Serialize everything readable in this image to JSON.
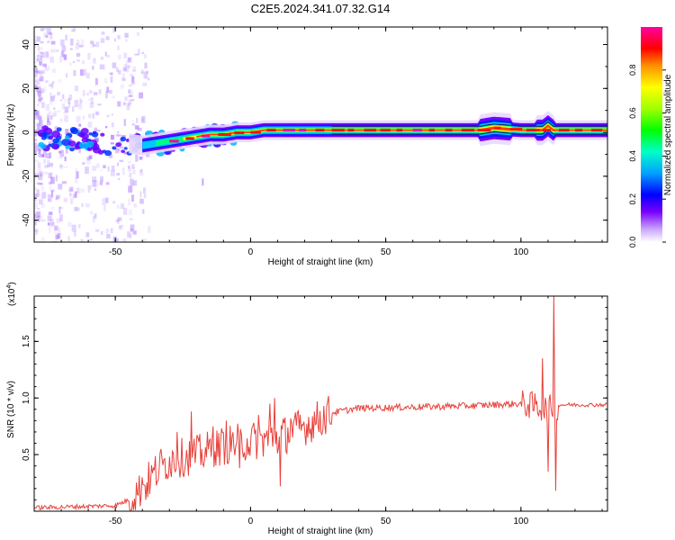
{
  "title": "C2E5.2024.341.07.32.G14",
  "chart_data": [
    {
      "type": "heatmap",
      "name": "spectrogram",
      "xlabel": "Height of straight line (km)",
      "ylabel": "Frequency (Hz)",
      "xlim": [
        -80,
        132
      ],
      "ylim": [
        -50,
        48
      ],
      "xticks": [
        -50,
        0,
        50,
        100
      ],
      "yticks": [
        -40,
        -20,
        0,
        20,
        40
      ],
      "ridge": [
        {
          "x": -80,
          "y": -2
        },
        {
          "x": -70,
          "y": -3
        },
        {
          "x": -60,
          "y": -4
        },
        {
          "x": -50,
          "y": -5
        },
        {
          "x": -45,
          "y": -5
        },
        {
          "x": -40,
          "y": -6
        },
        {
          "x": -35,
          "y": -5
        },
        {
          "x": -30,
          "y": -4
        },
        {
          "x": -25,
          "y": -3
        },
        {
          "x": -20,
          "y": -2
        },
        {
          "x": -15,
          "y": -1
        },
        {
          "x": -10,
          "y": -1
        },
        {
          "x": -5,
          "y": 0
        },
        {
          "x": 0,
          "y": 0
        },
        {
          "x": 5,
          "y": 1
        },
        {
          "x": 10,
          "y": 1
        },
        {
          "x": 20,
          "y": 1
        },
        {
          "x": 30,
          "y": 1
        },
        {
          "x": 50,
          "y": 1
        },
        {
          "x": 70,
          "y": 1
        },
        {
          "x": 85,
          "y": 1
        },
        {
          "x": 90,
          "y": 2
        },
        {
          "x": 100,
          "y": 1
        },
        {
          "x": 108,
          "y": 1
        },
        {
          "x": 110,
          "y": 3
        },
        {
          "x": 112,
          "y": 1
        },
        {
          "x": 132,
          "y": 1
        }
      ],
      "colorbar": {
        "label": "Normalized spectral amplitude",
        "range": [
          0,
          1
        ],
        "ticks": [
          "0.0",
          "0.2",
          "0.4",
          "0.6",
          "0.8"
        ],
        "colors": [
          "#ffffff",
          "#7a00ff",
          "#0000ff",
          "#00c8ff",
          "#00ff7f",
          "#7fff00",
          "#ffff00",
          "#ff8000",
          "#ff0000",
          "#ff00a0"
        ]
      }
    },
    {
      "type": "line",
      "name": "snr",
      "xlabel": "Height of straight line (km)",
      "ylabel": "SNR (10 * v/v)",
      "multiplier_label": "(x10",
      "multiplier_exp": "4",
      "multiplier_close": ")",
      "xlim": [
        -80,
        132
      ],
      "ylim": [
        0,
        1.9
      ],
      "xticks": [
        -50,
        0,
        50,
        100
      ],
      "yticks": [
        "0.5",
        "1.0",
        "1.5"
      ],
      "ytick_values": [
        0.5,
        1.0,
        1.5
      ],
      "color": "#e8413a",
      "envelope": [
        {
          "x": -80,
          "y": 0.03
        },
        {
          "x": -50,
          "y": 0.05
        },
        {
          "x": -45,
          "y": 0.1
        },
        {
          "x": -40,
          "y": 0.2
        },
        {
          "x": -35,
          "y": 0.35
        },
        {
          "x": -30,
          "y": 0.45
        },
        {
          "x": -20,
          "y": 0.5
        },
        {
          "x": -10,
          "y": 0.58
        },
        {
          "x": 0,
          "y": 0.62
        },
        {
          "x": 10,
          "y": 0.65
        },
        {
          "x": 20,
          "y": 0.75
        },
        {
          "x": 30,
          "y": 0.87
        },
        {
          "x": 40,
          "y": 0.91
        },
        {
          "x": 60,
          "y": 0.92
        },
        {
          "x": 80,
          "y": 0.93
        },
        {
          "x": 100,
          "y": 0.95
        },
        {
          "x": 105,
          "y": 0.93
        },
        {
          "x": 110,
          "y": 0.9
        },
        {
          "x": 115,
          "y": 0.94
        },
        {
          "x": 132,
          "y": 0.94
        }
      ],
      "spikes": [
        {
          "x": -40,
          "y": 0.3
        },
        {
          "x": -33,
          "y": 0.55
        },
        {
          "x": -27,
          "y": 0.7
        },
        {
          "x": -22,
          "y": 0.88
        },
        {
          "x": -18,
          "y": 0.55
        },
        {
          "x": -14,
          "y": 0.75
        },
        {
          "x": -9,
          "y": 0.8
        },
        {
          "x": -4,
          "y": 0.38
        },
        {
          "x": 3,
          "y": 0.85
        },
        {
          "x": 7,
          "y": 0.95
        },
        {
          "x": 9,
          "y": 1.0
        },
        {
          "x": 11,
          "y": 0.22
        },
        {
          "x": 15,
          "y": 0.82
        },
        {
          "x": 108,
          "y": 1.35
        },
        {
          "x": 110,
          "y": 0.35
        },
        {
          "x": 112,
          "y": 1.9
        },
        {
          "x": 113,
          "y": 0.18
        }
      ]
    }
  ]
}
